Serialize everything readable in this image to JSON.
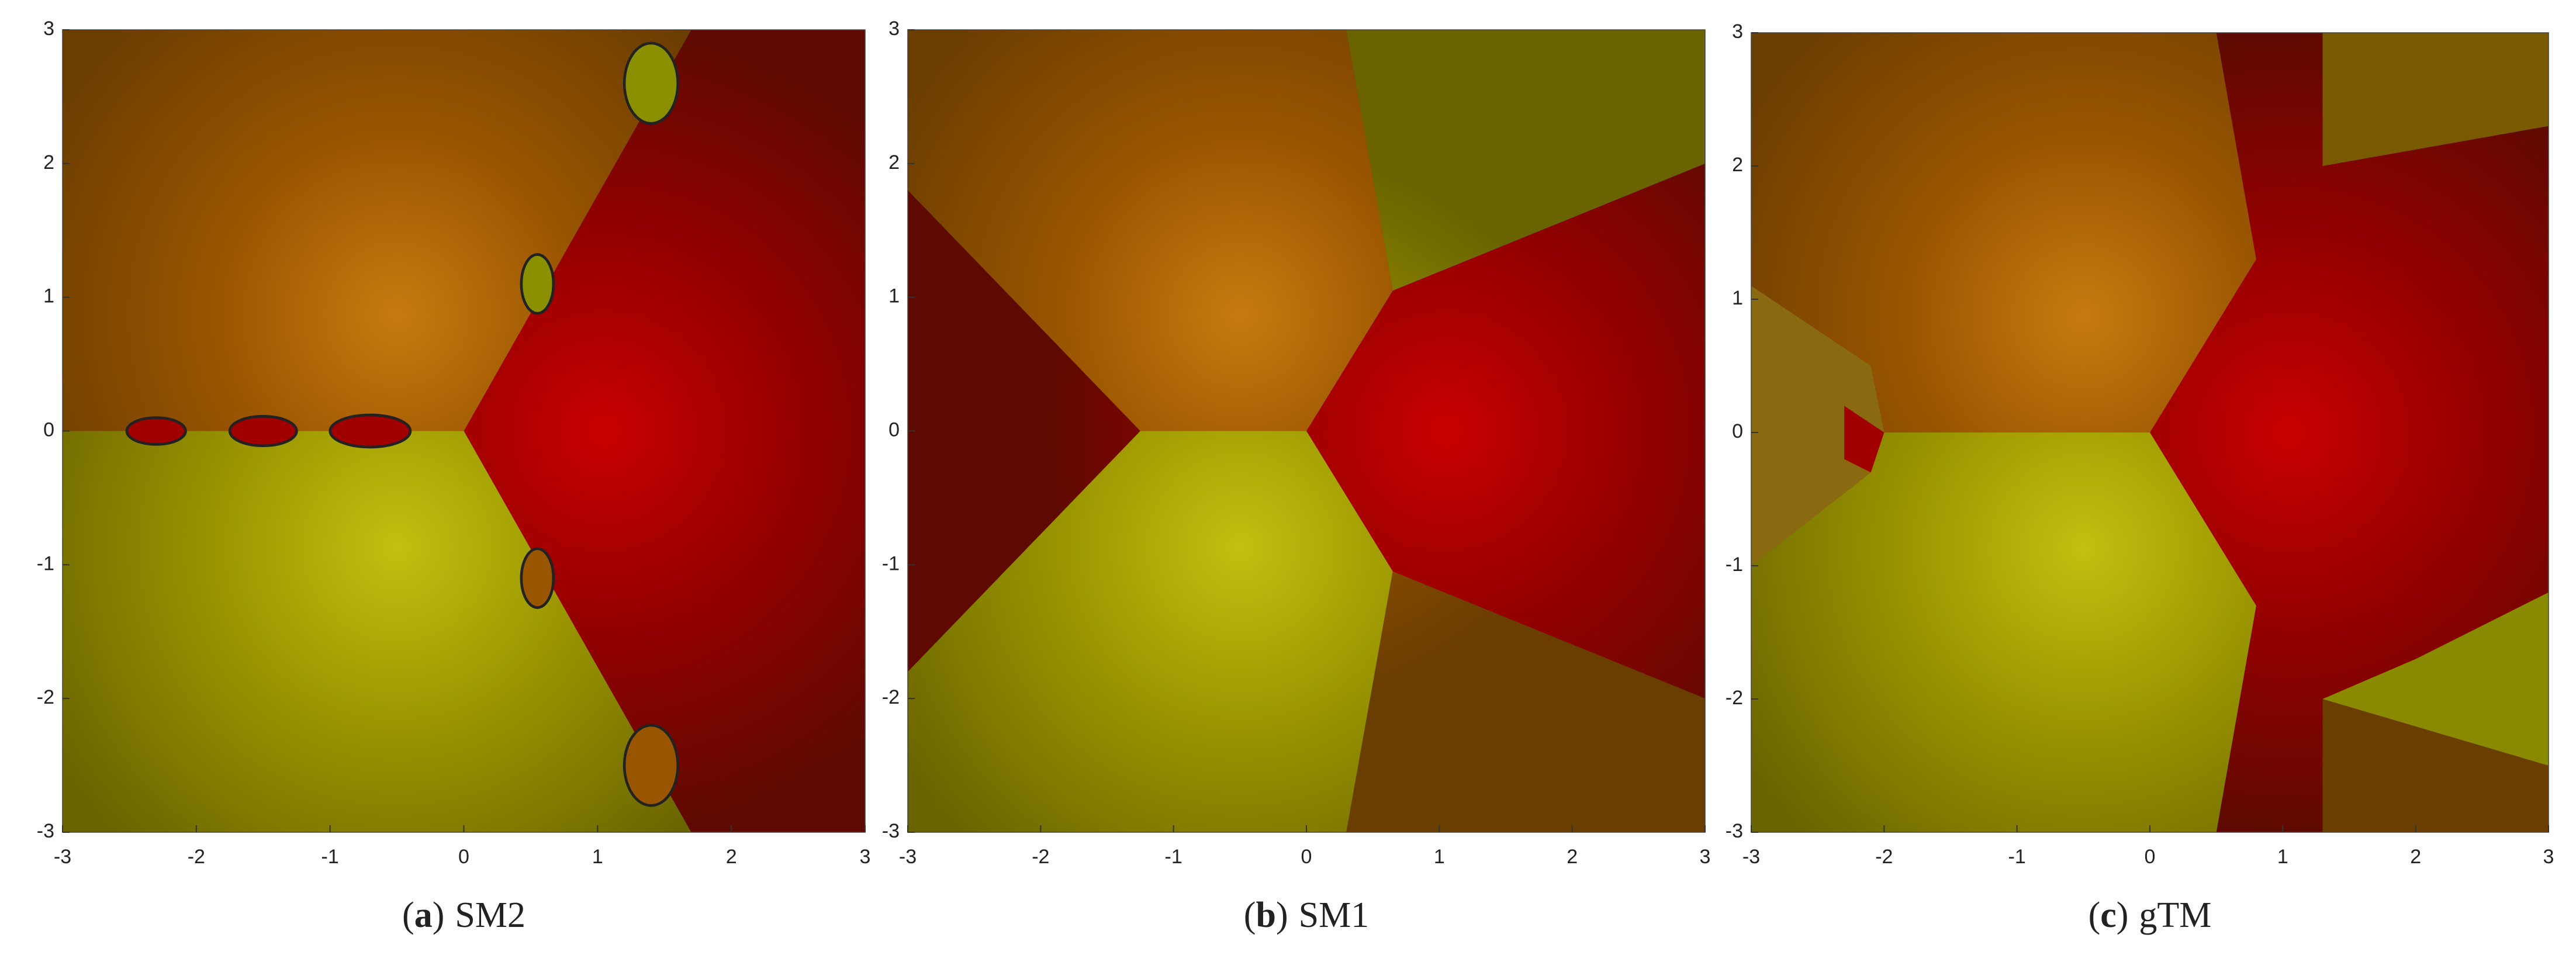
{
  "panels": [
    {
      "caption": {
        "open": "(",
        "label": "a",
        "close": ")",
        "text": "SM2"
      },
      "xlim": [
        -3,
        3
      ],
      "ylim": [
        -3,
        3
      ],
      "xticks": [
        -3,
        -2,
        -1,
        0,
        1,
        2,
        3
      ],
      "yticks": [
        -3,
        -2,
        -1,
        0,
        1,
        2,
        3
      ]
    },
    {
      "caption": {
        "open": "(",
        "label": "b",
        "close": ")",
        "text": "SM1"
      },
      "xlim": [
        -3,
        3
      ],
      "ylim": [
        -3,
        3
      ],
      "xticks": [
        -3,
        -2,
        -1,
        0,
        1,
        2,
        3
      ],
      "yticks": [
        -3,
        -2,
        -1,
        0,
        1,
        2,
        3
      ]
    },
    {
      "caption": {
        "open": "(",
        "label": "c",
        "close": ")",
        "text": "gTM"
      },
      "xlim": [
        -3,
        3
      ],
      "ylim": [
        -3,
        3
      ],
      "xticks": [
        -3,
        -2,
        -1,
        0,
        1,
        2,
        3
      ],
      "yticks": [
        -3,
        -2,
        -1,
        0,
        1,
        2,
        3
      ]
    }
  ]
}
